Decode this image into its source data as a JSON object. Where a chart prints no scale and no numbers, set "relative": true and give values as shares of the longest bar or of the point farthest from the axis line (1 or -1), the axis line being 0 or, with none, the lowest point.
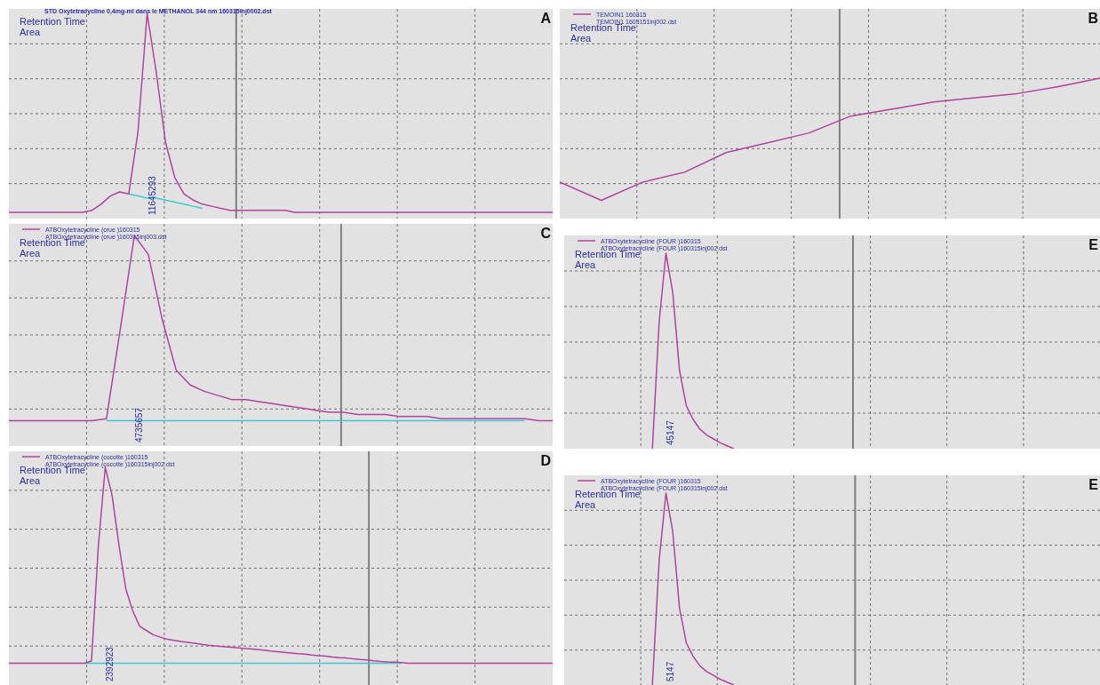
{
  "chart_data": [
    {
      "type": "line",
      "relative": true,
      "grid": true,
      "legend": false,
      "title": "STD Oxytetracycline 0,4mg-ml dans le METHANOL 344 nm 160315inj0002.dst",
      "annotations": [
        "Retention Time",
        "Area",
        "A",
        "11645293"
      ],
      "categories": [
        null,
        null,
        null,
        null,
        null,
        null,
        null,
        null,
        null,
        null,
        null,
        null,
        null,
        null,
        null,
        null,
        null,
        null,
        null,
        null,
        null,
        null,
        null,
        null,
        null,
        null,
        null,
        null,
        null,
        null,
        null,
        null,
        null,
        null,
        null,
        null,
        null,
        null,
        null,
        null,
        null,
        null,
        null,
        null,
        null,
        null,
        null,
        null,
        null,
        null,
        null,
        null,
        null,
        null,
        null,
        null,
        null,
        null,
        null,
        null
      ],
      "series": [
        {
          "color": "#b0449c",
          "values": [
            0.03,
            0.03,
            0.03,
            0.03,
            0.03,
            0.03,
            0.03,
            0.03,
            0.03,
            0.04,
            0.07,
            0.11,
            0.13,
            0.12,
            0.42,
            1,
            0.71,
            0.37,
            0.2,
            0.12,
            0.09,
            0.07,
            0.06,
            0.05,
            0.04,
            0.04,
            0.04,
            0.04,
            0.04,
            0.04,
            0.04,
            0.03,
            0.03,
            0.03,
            0.03,
            0.03,
            0.03,
            0.03,
            0.03,
            0.03,
            0.03,
            0.03,
            0.03,
            0.03,
            0.03,
            0.03,
            0.03,
            0.03,
            0.03,
            0.03,
            0.03,
            0.03,
            0.03,
            0.03,
            0.03,
            0.03,
            0.03,
            0.03,
            0.03,
            0.03
          ]
        },
        {
          "color": "#40c8d0",
          "values": [
            null,
            null,
            null,
            null,
            null,
            null,
            null,
            null,
            null,
            null,
            null,
            null,
            null,
            0.12,
            0.11,
            0.1,
            0.1,
            0.09,
            0.08,
            0.07,
            0.06,
            0.05,
            null,
            null,
            null,
            null,
            null,
            null,
            null,
            null,
            null,
            null,
            null,
            null,
            null,
            null,
            null,
            null,
            null,
            null,
            null,
            null,
            null,
            null,
            null,
            null,
            null,
            null,
            null,
            null,
            null,
            null,
            null,
            null,
            null,
            null,
            null,
            null,
            null,
            null
          ]
        }
      ]
    },
    {
      "type": "line",
      "relative": true,
      "grid": true,
      "legend": "top left",
      "subtitle": "TEMOIN1 1603151inj002.dst",
      "annotations": [
        "Retention Time",
        "Area",
        "B"
      ],
      "categories": [
        null,
        null,
        null,
        null,
        null,
        null,
        null,
        null,
        null,
        null,
        null,
        null,
        null,
        null
      ],
      "series": [
        {
          "name": "TEMOIN1 160315",
          "color": "#b0449c",
          "values": [
            0.26,
            0.13,
            0.26,
            0.33,
            0.47,
            0.54,
            0.61,
            0.73,
            0.78,
            0.83,
            0.86,
            0.89,
            0.94,
            1
          ]
        }
      ]
    },
    {
      "type": "line",
      "relative": true,
      "grid": true,
      "legend": "top left",
      "subtitle": "ATBOxytetracycline (crue )160315inj003.dst",
      "annotations": [
        "Retention Time",
        "Area",
        "C",
        "4735657"
      ],
      "categories": [
        null,
        null,
        null,
        null,
        null,
        null,
        null,
        null,
        null,
        null,
        null,
        null,
        null,
        null,
        null,
        null,
        null,
        null,
        null,
        null,
        null,
        null,
        null,
        null,
        null,
        null,
        null,
        null,
        null,
        null,
        null,
        null,
        null,
        null,
        null,
        null,
        null,
        null,
        null,
        null
      ],
      "series": [
        {
          "name": "ATBOxytetracycline (crue )160315",
          "color": "#b0449c",
          "values": [
            0.12,
            0.12,
            0.12,
            0.12,
            0.12,
            0.12,
            0.12,
            0.13,
            0.56,
            1,
            0.91,
            0.6,
            0.36,
            0.29,
            0.26,
            0.24,
            0.22,
            0.22,
            0.21,
            0.2,
            0.19,
            0.18,
            0.17,
            0.16,
            0.16,
            0.15,
            0.15,
            0.15,
            0.14,
            0.14,
            0.14,
            0.13,
            0.13,
            0.13,
            0.13,
            0.13,
            0.13,
            0.13,
            0.12,
            0.12
          ]
        },
        {
          "color": "#40c8d0",
          "values": [
            null,
            null,
            null,
            null,
            null,
            null,
            null,
            0.12,
            0.12,
            0.12,
            0.12,
            0.12,
            0.12,
            0.12,
            0.12,
            0.12,
            0.12,
            0.12,
            0.12,
            0.12,
            0.12,
            0.12,
            0.12,
            0.12,
            0.12,
            0.12,
            0.12,
            0.12,
            0.12,
            0.12,
            0.12,
            0.12,
            0.12,
            0.12,
            0.12,
            0.12,
            0.12,
            0.12,
            null,
            null
          ]
        }
      ]
    },
    {
      "type": "line",
      "relative": true,
      "grid": true,
      "legend": "top left",
      "subtitle": "ATBOxytetracycline (FOUR )160315inj002.dst",
      "annotations": [
        "Retention Time",
        "Area",
        "E",
        "45147"
      ],
      "categories": [
        null,
        null,
        null,
        null,
        null,
        null,
        null,
        null,
        null,
        null,
        null,
        null,
        null,
        null,
        null,
        null,
        null,
        null,
        null,
        null,
        null,
        null,
        null,
        null,
        null,
        null,
        null,
        null,
        null,
        null,
        null,
        null,
        null,
        null,
        null,
        null,
        null,
        null,
        null,
        null,
        null,
        null,
        null,
        null,
        null,
        null,
        null,
        null,
        null,
        null,
        null,
        null,
        null,
        null,
        null,
        null,
        null,
        null,
        null,
        null,
        null,
        null,
        null,
        null,
        null,
        null,
        null,
        null,
        null,
        null,
        null,
        null,
        null,
        null,
        null,
        null,
        null,
        null,
        null,
        null
      ],
      "series": [
        {
          "name": "ATBOxytetracycline (FOUR )160315",
          "color": "#b0449c",
          "values": [
            null,
            null,
            null,
            null,
            null,
            null,
            null,
            null,
            null,
            null,
            null,
            null,
            null,
            0,
            0.65,
            1,
            0.8,
            0.4,
            0.22,
            0.15,
            0.1,
            0.07,
            0.05,
            0.03,
            0.015,
            0,
            null,
            null,
            null,
            null,
            null,
            null,
            null,
            null,
            null,
            null,
            null,
            null,
            null,
            null,
            null,
            null,
            null,
            null,
            null,
            null,
            null,
            null,
            null,
            null,
            null,
            null,
            null,
            null,
            null,
            null,
            null,
            null,
            null,
            null,
            null,
            null,
            null,
            null,
            null,
            null,
            null,
            null,
            null,
            null,
            null,
            null,
            null,
            null,
            null,
            null,
            null,
            null,
            null,
            null
          ]
        }
      ]
    },
    {
      "type": "line",
      "relative": true,
      "grid": true,
      "legend": "top left",
      "subtitle": "ATBOxytetracycline (cocotte )160315inj002.dst",
      "annotations": [
        "Retention Time",
        "Area",
        "D",
        "2392923"
      ],
      "categories": [
        null,
        null,
        null,
        null,
        null,
        null,
        null,
        null,
        null,
        null,
        null,
        null,
        null,
        null,
        null,
        null,
        null,
        null,
        null,
        null,
        null,
        null,
        null,
        null,
        null,
        null,
        null,
        null,
        null,
        null,
        null,
        null,
        null,
        null,
        null,
        null,
        null,
        null,
        null,
        null,
        null,
        null,
        null,
        null,
        null,
        null,
        null,
        null,
        null,
        null,
        null,
        null,
        null,
        null,
        null,
        null,
        null,
        null,
        null,
        null,
        null,
        null,
        null,
        null,
        null,
        null,
        null,
        null,
        null,
        null,
        null,
        null,
        null,
        null,
        null,
        null,
        null,
        null,
        null,
        null
      ],
      "series": [
        {
          "name": "ATBOxytetracycline (cocotte )160315",
          "color": "#b0449c",
          "values": [
            0.1,
            0.1,
            0.1,
            0.1,
            0.1,
            0.1,
            0.1,
            0.1,
            0.1,
            0.1,
            0.1,
            0.1,
            0.11,
            0.64,
            1,
            0.87,
            0.64,
            0.44,
            0.34,
            0.27,
            0.25,
            0.23,
            0.22,
            0.21,
            0.205,
            0.2,
            0.196,
            0.192,
            0.187,
            0.183,
            0.18,
            0.177,
            0.174,
            0.171,
            0.168,
            0.166,
            0.163,
            0.16,
            0.156,
            0.153,
            0.15,
            0.147,
            0.144,
            0.142,
            0.138,
            0.135,
            0.133,
            0.129,
            0.126,
            0.124,
            0.12,
            0.117,
            0.115,
            0.111,
            0.108,
            0.106,
            0.105,
            0.103,
            0.1,
            0.1,
            0.1,
            0.1,
            0.1,
            0.1,
            0.1,
            0.1,
            0.1,
            0.1,
            0.1,
            0.1,
            0.1,
            0.1,
            0.1,
            0.1,
            0.1,
            0.1,
            0.1,
            0.1,
            0.1,
            0.1
          ]
        },
        {
          "color": "#40c8d0",
          "values": [
            null,
            null,
            null,
            null,
            null,
            null,
            null,
            null,
            null,
            null,
            null,
            0.1,
            0.1,
            0.1,
            0.1,
            0.1,
            0.1,
            0.1,
            0.1,
            0.1,
            0.1,
            0.1,
            0.1,
            0.1,
            0.1,
            0.1,
            0.1,
            0.1,
            0.1,
            0.1,
            0.1,
            0.1,
            0.1,
            0.1,
            0.1,
            0.1,
            0.1,
            0.1,
            0.1,
            0.1,
            0.1,
            0.1,
            0.1,
            0.1,
            0.1,
            0.1,
            0.1,
            0.1,
            0.1,
            0.1,
            0.1,
            0.1,
            0.1,
            0.1,
            0.1,
            0.1,
            0.1,
            0.1,
            null,
            null,
            null,
            null,
            null,
            null,
            null,
            null,
            null,
            null,
            null,
            null,
            null,
            null,
            null,
            null,
            null,
            null,
            null,
            null,
            null,
            null
          ]
        }
      ]
    },
    {
      "type": "line",
      "relative": true,
      "grid": true,
      "legend": "top left",
      "subtitle": "ATBOxytetracycline (FOUR )160315inj002.dst",
      "annotations": [
        "Retention Time",
        "Area",
        "E",
        "5147"
      ],
      "categories": [
        null,
        null,
        null,
        null,
        null,
        null,
        null,
        null,
        null,
        null,
        null,
        null,
        null,
        null,
        null,
        null,
        null,
        null,
        null,
        null,
        null,
        null,
        null,
        null,
        null,
        null,
        null,
        null,
        null,
        null,
        null,
        null,
        null,
        null,
        null,
        null,
        null,
        null,
        null,
        null,
        null,
        null,
        null,
        null,
        null,
        null,
        null,
        null,
        null,
        null,
        null,
        null,
        null,
        null,
        null,
        null,
        null,
        null,
        null,
        null,
        null,
        null,
        null,
        null,
        null,
        null,
        null,
        null,
        null,
        null,
        null,
        null,
        null,
        null,
        null,
        null,
        null,
        null,
        null,
        null
      ],
      "series": [
        {
          "name": "ATBOxytetracycline (FOUR )160315",
          "color": "#b0449c",
          "values": [
            null,
            null,
            null,
            null,
            null,
            null,
            null,
            null,
            null,
            null,
            null,
            null,
            null,
            0,
            0.65,
            1,
            0.8,
            0.4,
            0.22,
            0.15,
            0.1,
            0.07,
            0.05,
            0.03,
            0.015,
            0,
            null,
            null,
            null,
            null,
            null,
            null,
            null,
            null,
            null,
            null,
            null,
            null,
            null,
            null,
            null,
            null,
            null,
            null,
            null,
            null,
            null,
            null,
            null,
            null,
            null,
            null,
            null,
            null,
            null,
            null,
            null,
            null,
            null,
            null,
            null,
            null,
            null,
            null,
            null,
            null,
            null,
            null,
            null,
            null,
            null,
            null,
            null,
            null,
            null,
            null,
            null,
            null,
            null,
            null
          ]
        }
      ]
    }
  ]
}
